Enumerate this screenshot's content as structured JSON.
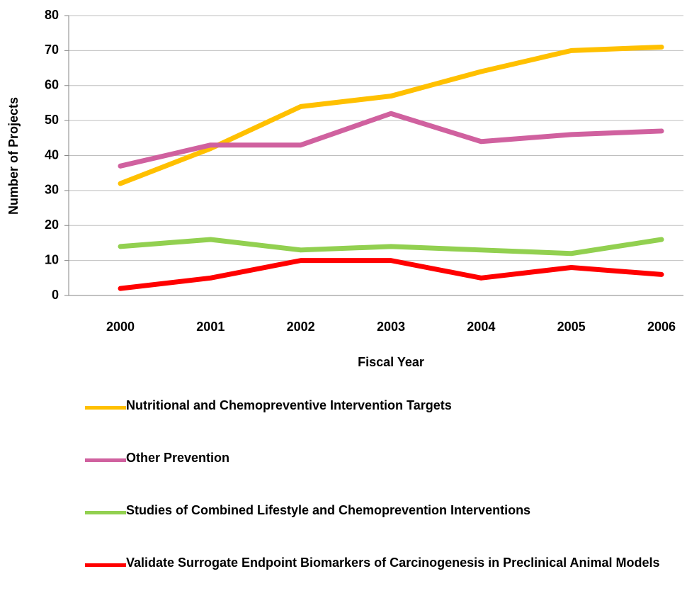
{
  "chart_data": {
    "type": "line",
    "xlabel": "Fiscal Year",
    "ylabel": "Number of Projects",
    "categories": [
      "2000",
      "2001",
      "2002",
      "2003",
      "2004",
      "2005",
      "2006"
    ],
    "series": [
      {
        "name": "Nutritional and Chemopreventive Intervention Targets",
        "color": "#ffc000",
        "values": [
          32,
          42,
          54,
          57,
          64,
          70,
          71
        ]
      },
      {
        "name": "Other Prevention",
        "color": "#d0619f",
        "values": [
          37,
          43,
          43,
          52,
          44,
          46,
          47
        ]
      },
      {
        "name": "Studies of Combined Lifestyle and Chemoprevention Interventions",
        "color": "#92d050",
        "values": [
          14,
          16,
          13,
          14,
          13,
          12,
          16
        ]
      },
      {
        "name": "Validate Surrogate Endpoint Biomarkers of Carcinogenesis in Preclinical Animal Models",
        "color": "#ff0000",
        "values": [
          2,
          5,
          10,
          10,
          5,
          8,
          6
        ]
      }
    ],
    "ylim": [
      0,
      80
    ],
    "yticks": [
      0,
      10,
      20,
      30,
      40,
      50,
      60,
      70,
      80
    ],
    "grid": true
  }
}
